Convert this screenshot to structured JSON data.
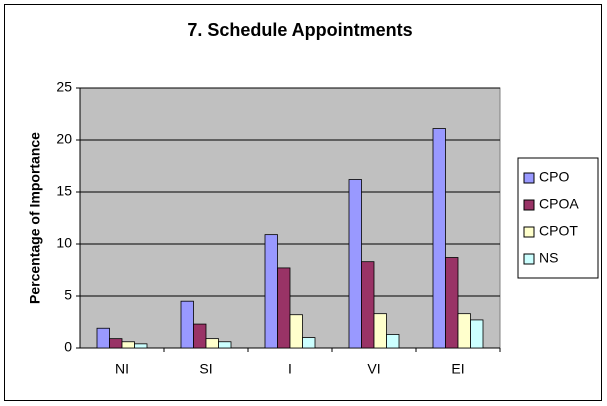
{
  "chart_data": {
    "type": "bar",
    "title": "7.  Schedule Appointments",
    "y_label": "Percentage of Importance",
    "categories": [
      "NI",
      "SI",
      "I",
      "VI",
      "EI"
    ],
    "series": [
      {
        "name": "CPO",
        "color": "#9999ff",
        "values": [
          1.9,
          4.5,
          10.9,
          16.2,
          21.1
        ]
      },
      {
        "name": "CPOA",
        "color": "#993366",
        "values": [
          0.9,
          2.3,
          7.7,
          8.3,
          8.7
        ]
      },
      {
        "name": "CPOT",
        "color": "#ffffcc",
        "values": [
          0.6,
          0.9,
          3.2,
          3.3,
          3.3
        ]
      },
      {
        "name": "NS",
        "color": "#ccffff",
        "values": [
          0.4,
          0.6,
          1.0,
          1.3,
          2.7
        ]
      }
    ],
    "ylim": [
      0,
      25
    ],
    "yticks": [
      0,
      5,
      10,
      15,
      20,
      25
    ],
    "grid": true,
    "legend": "right"
  }
}
